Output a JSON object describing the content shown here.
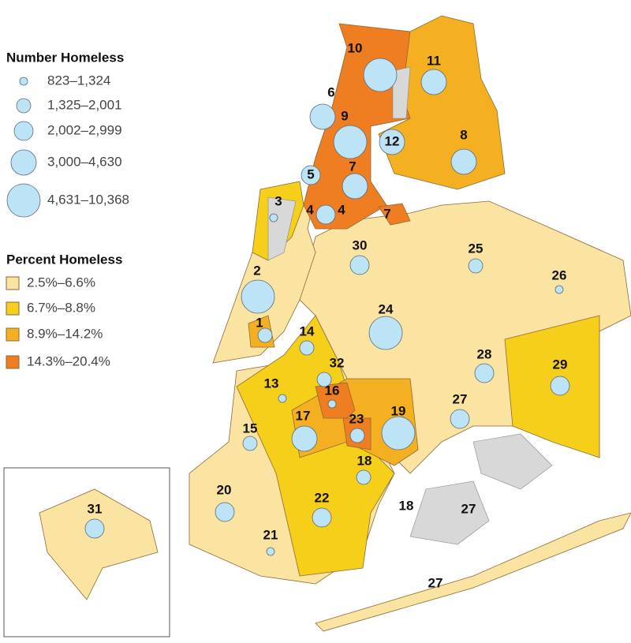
{
  "legend_number": {
    "title": "Number Homeless",
    "classes": [
      "823–1,324",
      "1,325–2,001",
      "2,002–2,999",
      "3,000–4,630",
      "4,631–10,368"
    ]
  },
  "legend_percent": {
    "title": "Percent Homeless",
    "classes": [
      "2.5%–6.6%",
      "6.7%–8.8%",
      "8.9%–14.2%",
      "14.3%–20.4%"
    ]
  },
  "districts": [
    {
      "label": "10",
      "number_class": 4
    },
    {
      "label": "11",
      "number_class": 3
    },
    {
      "label": "6",
      "number_class": 3
    },
    {
      "label": "9",
      "number_class": 4
    },
    {
      "label": "12",
      "number_class": 3
    },
    {
      "label": "8",
      "number_class": 3
    },
    {
      "label": "5",
      "number_class": 2
    },
    {
      "label": "7",
      "number_class": 3
    },
    {
      "label": "4",
      "number_class": 2
    },
    {
      "label": "3",
      "number_class": 0
    },
    {
      "label": "30",
      "number_class": 2
    },
    {
      "label": "25",
      "number_class": 1
    },
    {
      "label": "26",
      "number_class": 0
    },
    {
      "label": "2",
      "number_class": 4
    },
    {
      "label": "24",
      "number_class": 4
    },
    {
      "label": "1",
      "number_class": 1
    },
    {
      "label": "14",
      "number_class": 1
    },
    {
      "label": "28",
      "number_class": 2
    },
    {
      "label": "29",
      "number_class": 2
    },
    {
      "label": "32",
      "number_class": 1
    },
    {
      "label": "13",
      "number_class": 0
    },
    {
      "label": "16",
      "number_class": 0
    },
    {
      "label": "27",
      "number_class": 2
    },
    {
      "label": "19",
      "number_class": 4
    },
    {
      "label": "17",
      "number_class": 3
    },
    {
      "label": "23",
      "number_class": 1
    },
    {
      "label": "15",
      "number_class": 1
    },
    {
      "label": "18",
      "number_class": 1
    },
    {
      "label": "20",
      "number_class": 2
    },
    {
      "label": "22",
      "number_class": 2
    },
    {
      "label": "21",
      "number_class": 0
    },
    {
      "label": "31",
      "number_class": 2
    }
  ],
  "other_labels": [
    "4",
    "7",
    "18",
    "27",
    "27"
  ]
}
